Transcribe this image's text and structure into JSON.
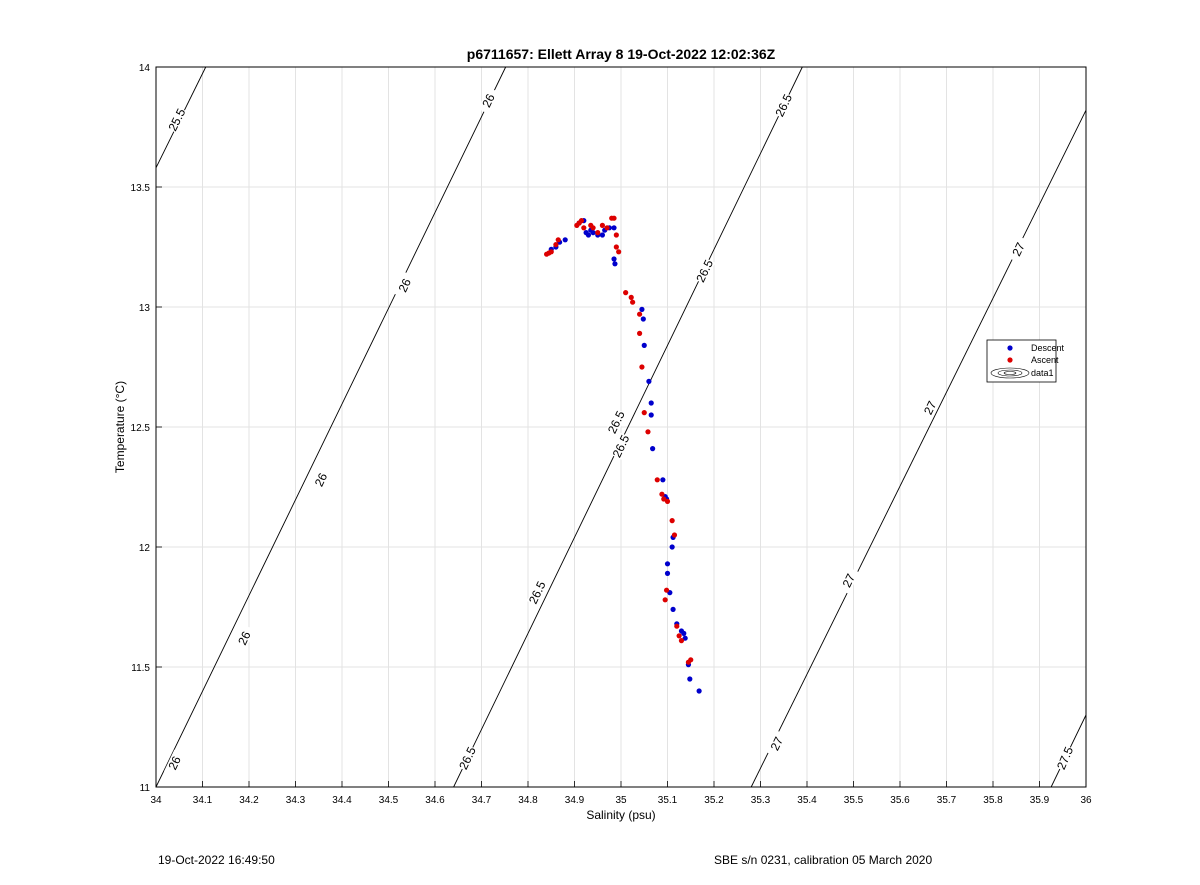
{
  "chart_data": {
    "type": "scatter",
    "title": "p6711657: Ellett Array 8 19-Oct-2022 12:02:36Z",
    "xlabel": "Salinity (psu)",
    "ylabel": "Temperature (°C)",
    "xlim": [
      34,
      36
    ],
    "ylim": [
      11,
      14
    ],
    "xticks": [
      "34",
      "34.1",
      "34.2",
      "34.3",
      "34.4",
      "34.5",
      "34.6",
      "34.7",
      "34.8",
      "34.9",
      "35",
      "35.1",
      "35.2",
      "35.3",
      "35.4",
      "35.5",
      "35.6",
      "35.7",
      "35.8",
      "35.9",
      "36"
    ],
    "yticks": [
      "11",
      "11.5",
      "12",
      "12.5",
      "13",
      "13.5",
      "14"
    ],
    "grid": true,
    "legend_position": "right",
    "legend": [
      "Descent",
      "Ascent",
      "data1"
    ],
    "colors": {
      "descent": "#0000cc",
      "ascent": "#dd0000",
      "contour": "#000000",
      "grid": "#e3e3e3"
    },
    "series": [
      {
        "name": "Descent",
        "points": [
          [
            34.85,
            13.24
          ],
          [
            34.86,
            13.25
          ],
          [
            34.868,
            13.27
          ],
          [
            34.88,
            13.28
          ],
          [
            34.91,
            13.35
          ],
          [
            34.92,
            13.36
          ],
          [
            34.925,
            13.31
          ],
          [
            34.93,
            13.3
          ],
          [
            34.935,
            13.32
          ],
          [
            34.94,
            13.31
          ],
          [
            34.95,
            13.3
          ],
          [
            34.96,
            13.3
          ],
          [
            34.965,
            13.32
          ],
          [
            34.975,
            13.33
          ],
          [
            34.985,
            13.33
          ],
          [
            34.985,
            13.2
          ],
          [
            34.987,
            13.18
          ],
          [
            35.045,
            12.99
          ],
          [
            35.048,
            12.95
          ],
          [
            35.05,
            12.84
          ],
          [
            35.06,
            12.69
          ],
          [
            35.065,
            12.6
          ],
          [
            35.065,
            12.55
          ],
          [
            35.068,
            12.41
          ],
          [
            35.09,
            12.28
          ],
          [
            35.095,
            12.21
          ],
          [
            35.098,
            12.2
          ],
          [
            35.112,
            12.04
          ],
          [
            35.11,
            12.0
          ],
          [
            35.1,
            11.93
          ],
          [
            35.1,
            11.89
          ],
          [
            35.105,
            11.81
          ],
          [
            35.112,
            11.74
          ],
          [
            35.12,
            11.68
          ],
          [
            35.13,
            11.65
          ],
          [
            35.135,
            11.64
          ],
          [
            35.138,
            11.62
          ],
          [
            35.145,
            11.51
          ],
          [
            35.148,
            11.45
          ],
          [
            35.168,
            11.4
          ]
        ]
      },
      {
        "name": "Ascent",
        "points": [
          [
            34.84,
            13.22
          ],
          [
            34.845,
            13.225
          ],
          [
            34.85,
            13.23
          ],
          [
            34.86,
            13.26
          ],
          [
            34.865,
            13.28
          ],
          [
            34.905,
            13.34
          ],
          [
            34.91,
            13.35
          ],
          [
            34.915,
            13.36
          ],
          [
            34.92,
            13.33
          ],
          [
            34.935,
            13.34
          ],
          [
            34.94,
            13.33
          ],
          [
            34.95,
            13.31
          ],
          [
            34.96,
            13.34
          ],
          [
            34.97,
            13.33
          ],
          [
            34.98,
            13.37
          ],
          [
            34.985,
            13.37
          ],
          [
            34.99,
            13.3
          ],
          [
            34.99,
            13.25
          ],
          [
            34.995,
            13.23
          ],
          [
            35.01,
            13.06
          ],
          [
            35.022,
            13.04
          ],
          [
            35.025,
            13.02
          ],
          [
            35.04,
            12.97
          ],
          [
            35.04,
            12.89
          ],
          [
            35.045,
            12.75
          ],
          [
            35.05,
            12.56
          ],
          [
            35.058,
            12.48
          ],
          [
            35.078,
            12.28
          ],
          [
            35.088,
            12.22
          ],
          [
            35.092,
            12.2
          ],
          [
            35.1,
            12.19
          ],
          [
            35.11,
            12.11
          ],
          [
            35.115,
            12.05
          ],
          [
            35.098,
            11.82
          ],
          [
            35.095,
            11.78
          ],
          [
            35.12,
            11.67
          ],
          [
            35.125,
            11.63
          ],
          [
            35.13,
            11.61
          ],
          [
            35.145,
            11.52
          ],
          [
            35.15,
            11.53
          ]
        ]
      }
    ],
    "contours": [
      {
        "level": "25.5",
        "labels": [
          "25.5"
        ]
      },
      {
        "level": "26",
        "labels": [
          "26",
          "26",
          "26",
          "26",
          "26"
        ]
      },
      {
        "level": "26.5",
        "labels": [
          "26.5",
          "26.5",
          "26.5",
          "26.5",
          "26.5",
          "26.5"
        ]
      },
      {
        "level": "27",
        "labels": [
          "27",
          "27",
          "27",
          "27"
        ]
      },
      {
        "level": "27.5",
        "labels": [
          "27.5"
        ]
      }
    ]
  },
  "footer": {
    "timestamp": "19-Oct-2022 16:49:50",
    "calibration": "SBE s/n 0231, calibration 05 March 2020"
  }
}
